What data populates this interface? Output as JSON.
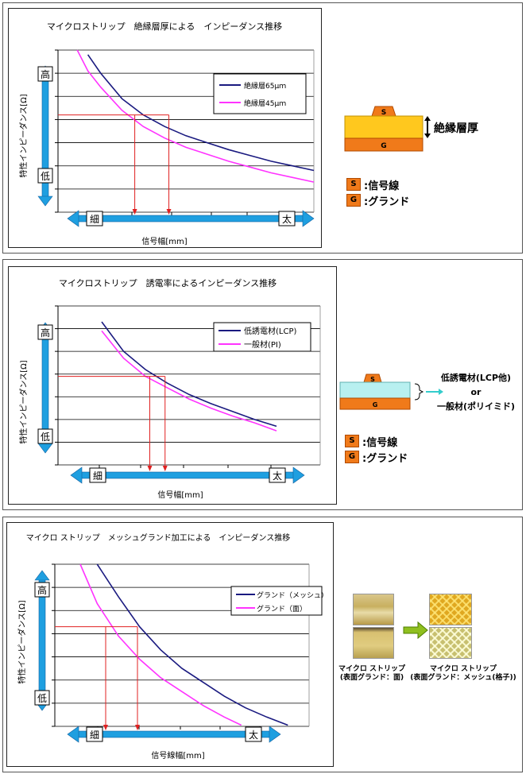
{
  "panels": [
    {
      "title": "マイクロストリップ　絶縁層厚による　インピーダンス推移",
      "ylabel": "特性インピーダンス[Ω]",
      "xlabel": "信号幅[mm]",
      "high": "高",
      "low": "低",
      "thin": "細",
      "thick": "太",
      "legend": [
        "絶縁層65μｍ",
        "絶縁層45μｍ"
      ],
      "diagram": {
        "s": "S",
        "g": "G",
        "label": "絶縁層厚"
      },
      "key": {
        "s_badge": "S",
        "s_text": ":信号線",
        "g_badge": "G",
        "g_text": ":グランド"
      }
    },
    {
      "title": "マイクロストリップ　誘電率によるインピーダンス推移",
      "ylabel": "特性インピーダンス[Ω]",
      "xlabel": "信号幅[mm]",
      "high": "高",
      "low": "低",
      "thin": "細",
      "thick": "太",
      "legend": [
        "低誘電材(LCP)",
        "一般材(PI)"
      ],
      "diagram": {
        "s": "S",
        "g": "G",
        "opt1": "低誘電材(LCP他)",
        "or": "or",
        "opt2": "一般材(ポリイミド)"
      },
      "key": {
        "s_badge": "S",
        "s_text": ":信号線",
        "g_badge": "G",
        "g_text": ":グランド"
      }
    },
    {
      "title": "マイクロ ストリップ　メッシュグランド加工による　インピーダンス推移",
      "ylabel": "特性インピーダンス[Ω]",
      "xlabel": "信号線幅[mm]",
      "high": "高",
      "low": "低",
      "thin": "細",
      "thick": "太",
      "legend": [
        "グランド（メッシュ）",
        "グランド（面）"
      ],
      "captions": {
        "left_line1": "マイクロ ストリップ",
        "left_line2": "(表面グランド：面)",
        "right_line1": "マイクロ ストリップ",
        "right_line2": "(表面グランド：メッシュ(格子))"
      }
    }
  ],
  "colors": {
    "navy": "#1a1a80",
    "magenta": "#ff33ff",
    "arrow": "#1f9fe0",
    "marker": "#e02020",
    "orange": "#f07a1a",
    "yellow": "#ffc81e",
    "cyan": "#b8f0f0"
  },
  "chart_data": [
    {
      "type": "line",
      "title": "マイクロストリップ　絶縁層厚による　インピーダンス推移",
      "xlabel": "信号幅[mm]",
      "ylabel": "特性インピーダンス[Ω]",
      "ylim": [
        0,
        7
      ],
      "xlim": [
        0,
        6
      ],
      "series": [
        {
          "name": "絶縁層65μｍ",
          "color": "#1a1a80",
          "x": [
            0.7,
            1,
            1.5,
            2,
            2.5,
            3,
            3.5,
            4,
            4.5,
            5,
            5.5,
            6
          ],
          "y": [
            6.8,
            6.0,
            4.9,
            4.2,
            3.7,
            3.3,
            3.0,
            2.7,
            2.45,
            2.2,
            2.0,
            1.8
          ]
        },
        {
          "name": "絶縁層45μｍ",
          "color": "#ff33ff",
          "x": [
            0.45,
            0.7,
            1,
            1.5,
            2,
            2.5,
            3,
            3.5,
            4,
            4.5,
            5,
            5.5,
            6
          ],
          "y": [
            7.0,
            6.1,
            5.4,
            4.4,
            3.7,
            3.2,
            2.8,
            2.5,
            2.2,
            1.95,
            1.7,
            1.5,
            1.3
          ]
        }
      ],
      "markers": [
        {
          "x": 1.8,
          "y": 4.2
        },
        {
          "x": 2.6,
          "y": 4.2
        }
      ]
    },
    {
      "type": "line",
      "title": "マイクロストリップ　誘電率によるインピーダンス推移",
      "xlabel": "信号幅[mm]",
      "ylabel": "特性インピーダンス[Ω]",
      "ylim": [
        0,
        7
      ],
      "xlim": [
        0,
        6
      ],
      "series": [
        {
          "name": "低誘電材(LCP)",
          "color": "#1a1a80",
          "x": [
            1,
            1.5,
            2,
            2.5,
            3,
            3.5,
            4,
            4.5,
            5
          ],
          "y": [
            6.3,
            5.0,
            4.2,
            3.6,
            3.1,
            2.7,
            2.35,
            2.0,
            1.7
          ]
        },
        {
          "name": "一般材(PI)",
          "color": "#ff33ff",
          "x": [
            1,
            1.5,
            2,
            2.5,
            3,
            3.5,
            4,
            4.5,
            5
          ],
          "y": [
            5.9,
            4.7,
            3.9,
            3.4,
            2.9,
            2.5,
            2.15,
            1.85,
            1.5
          ]
        }
      ],
      "markers": [
        {
          "x": 2.1,
          "y": 3.9
        },
        {
          "x": 2.45,
          "y": 3.9
        }
      ]
    },
    {
      "type": "line",
      "title": "マイクロ ストリップ　メッシュグランド加工による　インピーダンス推移",
      "xlabel": "信号線幅[mm]",
      "ylabel": "特性インピーダンス[Ω]",
      "ylim": [
        0,
        7
      ],
      "xlim": [
        0,
        6
      ],
      "series": [
        {
          "name": "グランド（メッシュ）",
          "color": "#1a1a80",
          "x": [
            1,
            1.5,
            2,
            2.5,
            3,
            3.5,
            4,
            4.5,
            5,
            5.5
          ],
          "y": [
            7.0,
            5.6,
            4.3,
            3.3,
            2.5,
            1.9,
            1.3,
            0.8,
            0.4,
            0.05
          ]
        },
        {
          "name": "グランド（面）",
          "color": "#ff33ff",
          "x": [
            0.6,
            1,
            1.5,
            2,
            2.5,
            3,
            3.5,
            4,
            4.4
          ],
          "y": [
            7.0,
            5.3,
            3.9,
            2.9,
            2.1,
            1.5,
            0.9,
            0.4,
            0.05
          ]
        }
      ],
      "markers": [
        {
          "x": 1.2,
          "y": 4.3
        },
        {
          "x": 1.95,
          "y": 4.3
        }
      ]
    }
  ]
}
